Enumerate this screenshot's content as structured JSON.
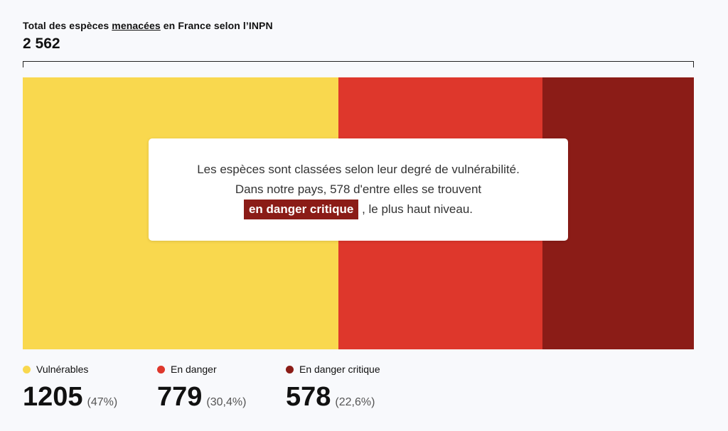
{
  "header": {
    "title_pre": "Total des espèces ",
    "title_ul": "menacées",
    "title_post": " en France selon l’INPN",
    "total": "2 562"
  },
  "note": {
    "line1": "Les espèces sont classées selon leur degré de vulnérabilité.",
    "line2": "Dans notre pays, 578 d'entre elles se trouvent",
    "highlight": "en danger critique",
    "line3_post": " , le plus haut niveau."
  },
  "chart_data": {
    "type": "bar",
    "stacked": true,
    "orientation": "horizontal",
    "title": "Total des espèces menacées en France selon l’INPN",
    "total": 2562,
    "categories": [
      "Vulnérables",
      "En danger",
      "En danger critique"
    ],
    "values": [
      1205,
      779,
      578
    ],
    "labels": [
      "1205",
      "779",
      "578"
    ],
    "percent_labels": [
      "(47%)",
      "(30,4%)",
      "(22,6%)"
    ],
    "colors": [
      "#f9d84e",
      "#de372c",
      "#8b1c17"
    ],
    "legend": "bottom"
  }
}
